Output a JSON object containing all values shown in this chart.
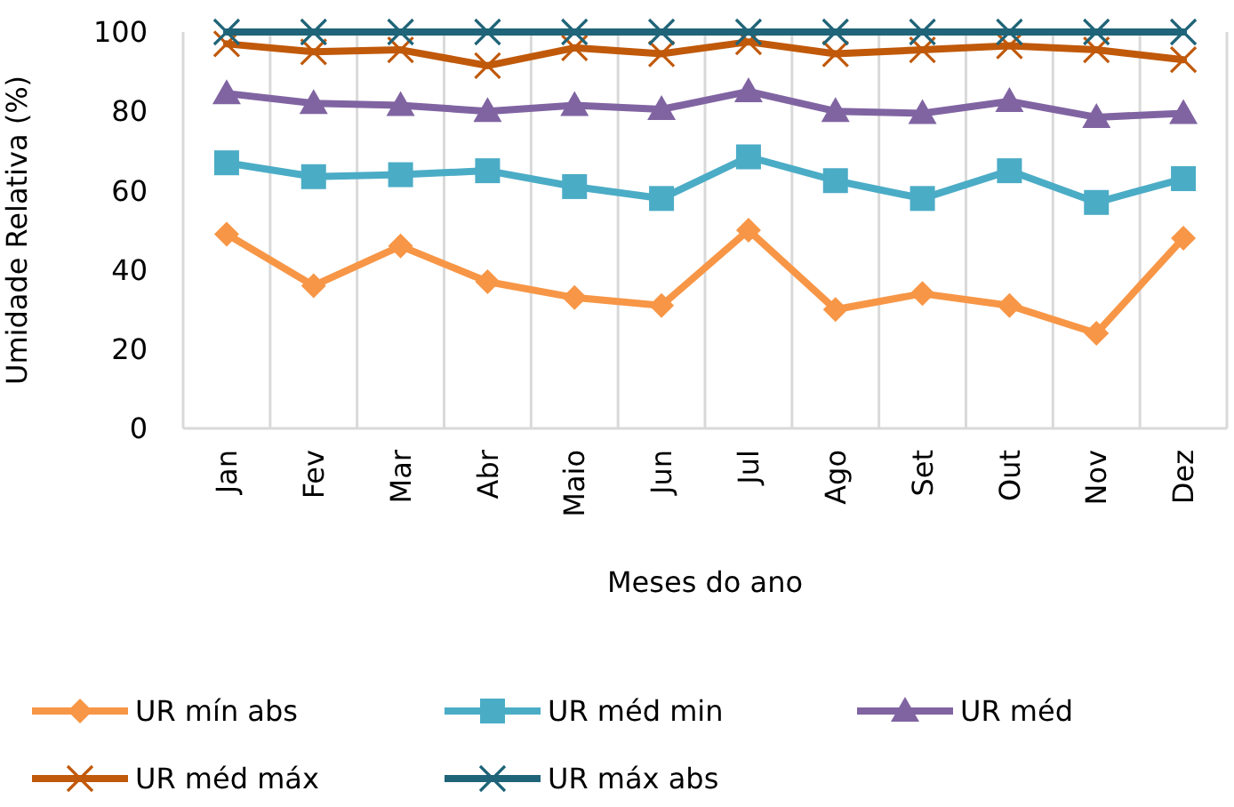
{
  "chart_data": {
    "type": "line",
    "xlabel": "Meses do ano",
    "ylabel": "Umidade Relativa (%)",
    "categories": [
      "Jan",
      "Fev",
      "Mar",
      "Abr",
      "Maio",
      "Jun",
      "Jul",
      "Ago",
      "Set",
      "Out",
      "Nov",
      "Dez"
    ],
    "ylim": [
      0,
      100
    ],
    "yticks": [
      0,
      20,
      40,
      60,
      80,
      100
    ],
    "grid": "x",
    "legend": "bottom",
    "series": [
      {
        "name": "UR mín abs",
        "color": "#f79646",
        "marker": "diamond",
        "values": [
          49,
          36,
          46,
          37,
          33,
          31,
          50,
          30,
          34,
          31,
          24,
          48
        ]
      },
      {
        "name": "UR méd min",
        "color": "#4bacc6",
        "marker": "square",
        "values": [
          67,
          63.5,
          64,
          65,
          61,
          58,
          68.5,
          62.5,
          58,
          65,
          57,
          63
        ]
      },
      {
        "name": "UR méd",
        "color": "#8064a2",
        "marker": "triangle",
        "values": [
          84.5,
          82,
          81.5,
          80,
          81.5,
          80.5,
          85,
          80,
          79.5,
          82.5,
          78.5,
          79.5
        ]
      },
      {
        "name": "UR méd máx",
        "color": "#c0590a",
        "marker": "cross",
        "values": [
          97,
          95,
          95.5,
          91.5,
          96,
          94.5,
          97.5,
          94.5,
          95.5,
          96.5,
          95.5,
          93
        ]
      },
      {
        "name": "UR máx abs",
        "color": "#1f6478",
        "marker": "cross",
        "values": [
          100,
          100,
          100,
          100,
          100,
          100,
          100,
          100,
          100,
          100,
          100,
          100
        ]
      }
    ]
  }
}
